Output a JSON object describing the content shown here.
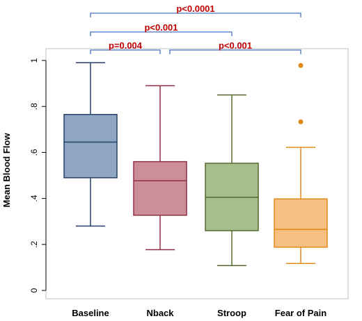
{
  "chart_data": {
    "type": "boxplot",
    "ylabel": "Mean Blood Flow",
    "xlabel": "",
    "ylim": [
      0,
      1.03
    ],
    "yticks": [
      {
        "value": 0,
        "label": "0"
      },
      {
        "value": 0.2,
        "label": ".2"
      },
      {
        "value": 0.4,
        "label": ".4"
      },
      {
        "value": 0.6,
        "label": ".6"
      },
      {
        "value": 0.8,
        "label": ".8"
      },
      {
        "value": 1.0,
        "label": "1"
      }
    ],
    "categories": [
      "Baseline",
      "Nback",
      "Stroop",
      "Fear of Pain"
    ],
    "colors": {
      "fill": [
        "#8ea6c2",
        "#cc8e98",
        "#a6bd8c",
        "#f4bf80"
      ],
      "edge": [
        "#26426a",
        "#8e2f43",
        "#556a2e",
        "#e08b18"
      ],
      "outlier": "#e08b18",
      "significance_bracket": "#4472c4",
      "significance_text": "#c00000"
    },
    "boxes": [
      {
        "whisker_low": 0.28,
        "q1": 0.49,
        "median": 0.645,
        "q3": 0.765,
        "whisker_high": 0.99,
        "outliers": []
      },
      {
        "whisker_low": 0.177,
        "q1": 0.327,
        "median": 0.477,
        "q3": 0.56,
        "whisker_high": 0.89,
        "outliers": []
      },
      {
        "whisker_low": 0.108,
        "q1": 0.26,
        "median": 0.405,
        "q3": 0.553,
        "whisker_high": 0.85,
        "outliers": []
      },
      {
        "whisker_low": 0.117,
        "q1": 0.188,
        "median": 0.265,
        "q3": 0.398,
        "whisker_high": 0.622,
        "outliers": [
          0.733,
          0.978
        ]
      }
    ],
    "significance": [
      {
        "from": 0,
        "to": 1,
        "label": "p=0.004",
        "level": 1
      },
      {
        "from": 1,
        "to": 3,
        "label": "p<0.001",
        "level": 1
      },
      {
        "from": 0,
        "to": 2,
        "label": "p<0.001",
        "level": 2
      },
      {
        "from": 0,
        "to": 3,
        "label": "p<0.0001",
        "level": 3
      }
    ],
    "grid": false,
    "legend": "none"
  }
}
